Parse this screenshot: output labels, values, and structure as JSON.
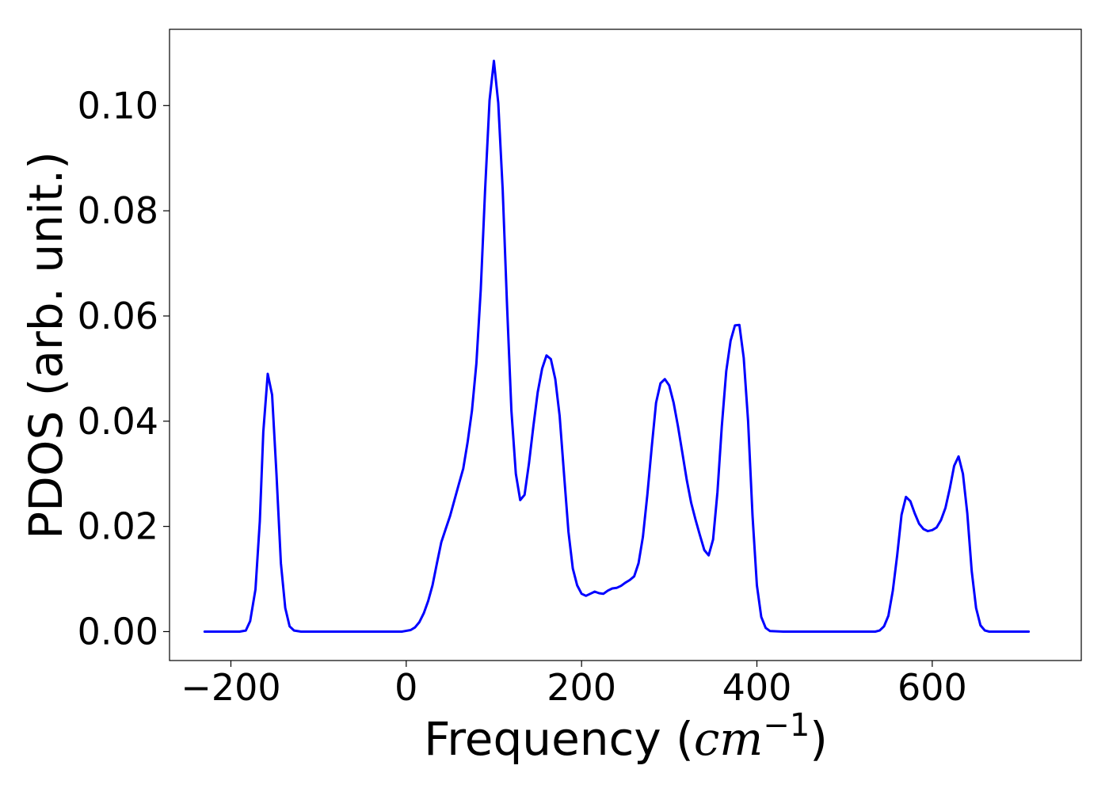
{
  "chart_data": {
    "type": "line",
    "title": "",
    "xlabel": "Frequency",
    "xlabel_unit_open": "(",
    "xlabel_unit_base": "cm",
    "xlabel_unit_exp": "−1",
    "xlabel_unit_close": ")",
    "ylabel": "PDOS (arb. unit.)",
    "xlim": [
      -270,
      770
    ],
    "ylim": [
      -0.0055,
      0.1145
    ],
    "x_ticks": [
      -200,
      0,
      200,
      400,
      600
    ],
    "x_tick_labels": [
      "−200",
      "0",
      "200",
      "400",
      "600"
    ],
    "y_ticks": [
      0.0,
      0.02,
      0.04,
      0.06,
      0.08,
      0.1
    ],
    "y_tick_labels": [
      "0.00",
      "0.02",
      "0.04",
      "0.06",
      "0.08",
      "0.10"
    ],
    "grid": false,
    "series": [
      {
        "color": "#0000ff",
        "x": [
          -230,
          -190,
          -183,
          -178,
          -172,
          -167,
          -163,
          -158,
          -153,
          -148,
          -143,
          -138,
          -133,
          -128,
          -120,
          -60,
          -5,
          5,
          10,
          15,
          20,
          25,
          30,
          35,
          40,
          45,
          50,
          55,
          60,
          65,
          70,
          75,
          80,
          85,
          90,
          95,
          100,
          105,
          110,
          115,
          120,
          125,
          130,
          135,
          140,
          145,
          150,
          155,
          160,
          165,
          170,
          175,
          180,
          185,
          190,
          195,
          200,
          205,
          210,
          215,
          220,
          225,
          230,
          235,
          240,
          245,
          250,
          255,
          260,
          265,
          270,
          275,
          280,
          285,
          290,
          295,
          300,
          305,
          310,
          315,
          320,
          325,
          330,
          335,
          340,
          345,
          350,
          355,
          360,
          365,
          370,
          375,
          380,
          385,
          390,
          395,
          400,
          405,
          410,
          415,
          430,
          500,
          535,
          540,
          545,
          550,
          555,
          560,
          565,
          570,
          575,
          580,
          585,
          590,
          595,
          600,
          605,
          610,
          615,
          620,
          625,
          630,
          635,
          640,
          645,
          650,
          655,
          660,
          665,
          670,
          710
        ],
        "y": [
          0.0,
          0.0,
          0.0002,
          0.002,
          0.008,
          0.021,
          0.038,
          0.049,
          0.045,
          0.03,
          0.013,
          0.0045,
          0.001,
          0.0002,
          0.0,
          0.0,
          0.0,
          0.0003,
          0.0008,
          0.0018,
          0.0035,
          0.0058,
          0.0088,
          0.013,
          0.017,
          0.0195,
          0.022,
          0.025,
          0.028,
          0.031,
          0.036,
          0.042,
          0.051,
          0.065,
          0.084,
          0.101,
          0.1085,
          0.1005,
          0.084,
          0.062,
          0.042,
          0.03,
          0.025,
          0.026,
          0.032,
          0.039,
          0.0455,
          0.05,
          0.0525,
          0.0518,
          0.048,
          0.041,
          0.03,
          0.019,
          0.012,
          0.0088,
          0.0072,
          0.0068,
          0.0072,
          0.0076,
          0.0073,
          0.0072,
          0.0078,
          0.0082,
          0.0083,
          0.0087,
          0.0093,
          0.0098,
          0.0105,
          0.013,
          0.018,
          0.026,
          0.035,
          0.0435,
          0.0472,
          0.048,
          0.0468,
          0.0435,
          0.039,
          0.034,
          0.0288,
          0.0245,
          0.0213,
          0.0183,
          0.0155,
          0.0145,
          0.0175,
          0.0265,
          0.039,
          0.0495,
          0.0553,
          0.0582,
          0.0583,
          0.052,
          0.04,
          0.022,
          0.0088,
          0.0028,
          0.0007,
          0.0001,
          0.0,
          0.0,
          0.0,
          0.0002,
          0.001,
          0.003,
          0.0078,
          0.0145,
          0.0222,
          0.0256,
          0.0248,
          0.0225,
          0.0205,
          0.0195,
          0.0191,
          0.0193,
          0.0198,
          0.0212,
          0.0235,
          0.0272,
          0.0315,
          0.0333,
          0.03,
          0.0225,
          0.0115,
          0.0045,
          0.0012,
          0.0002,
          0.0,
          0.0,
          0.0
        ]
      }
    ]
  }
}
